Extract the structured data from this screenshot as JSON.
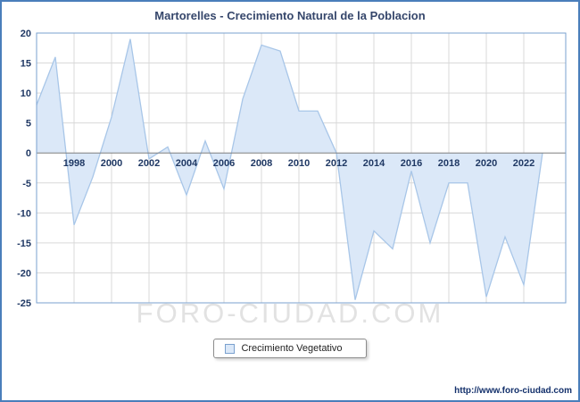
{
  "page": {
    "title": "Martorelles - Crecimiento Natural de la Poblacion",
    "watermark": "FORO-CIUDAD.COM",
    "url": "http://www.foro-ciudad.com"
  },
  "legend": {
    "label": "Crecimiento Vegetativo"
  },
  "colors": {
    "outer_border": "#4a7ebb",
    "plot_border": "#7aa1cf",
    "grid": "#d9d9d9",
    "zero_line": "#7f7f7f",
    "area_fill": "#dbe8f8",
    "area_line": "#a8c6e8",
    "tick_text": "#1f3864",
    "watermark": "#e2e2e2"
  },
  "chart_data": {
    "type": "area",
    "title": "Martorelles - Crecimiento Natural de la Poblacion",
    "xlabel": "",
    "ylabel": "",
    "ylim": [
      -25,
      20
    ],
    "ytick_step": 5,
    "baseline": 0,
    "grid": true,
    "legend_position": "bottom",
    "xticks": [
      1998,
      2000,
      2002,
      2004,
      2006,
      2008,
      2010,
      2012,
      2014,
      2016,
      2018,
      2020,
      2022
    ],
    "series": [
      {
        "name": "Crecimiento Vegetativo",
        "x": [
          1996,
          1997,
          1998,
          1999,
          2000,
          2001,
          2002,
          2003,
          2004,
          2005,
          2006,
          2007,
          2008,
          2009,
          2010,
          2011,
          2012,
          2013,
          2014,
          2015,
          2016,
          2017,
          2018,
          2019,
          2020,
          2021,
          2022,
          2023
        ],
        "values": [
          8,
          16,
          -12,
          -4,
          6,
          19,
          -1,
          1,
          -7,
          2,
          -6,
          9,
          18,
          17,
          7,
          7,
          0,
          -24.5,
          -13,
          -16,
          -3,
          -15,
          -5,
          -5,
          -24,
          -14,
          -22,
          0
        ]
      }
    ]
  }
}
